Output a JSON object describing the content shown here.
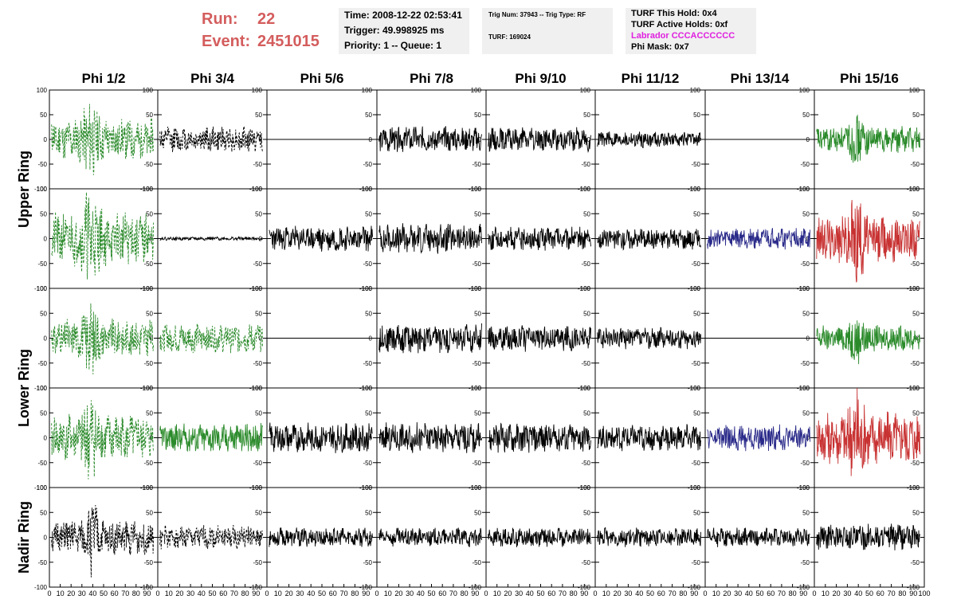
{
  "header": {
    "run_label": "Run:",
    "run_value": "22",
    "event_label": "Event:",
    "event_value": "2451015"
  },
  "info_box_1": {
    "time": "Time: 2008-12-22 02:53:41",
    "trigger": "Trigger: 49.998925 ms",
    "priority": "Priority: 1 -- Queue: 1"
  },
  "info_box_2": {
    "trig": "Trig Num: 37943 -- Trig Type: RF",
    "turf": "TURF: 169024"
  },
  "info_box_3": {
    "this_hold": "TURF This Hold: 0x4",
    "active_holds": "TURF Active Holds: 0xf",
    "labrador": "Labrador CCCACCCCCC",
    "phi_mask": "Phi Mask: 0x7"
  },
  "colors": {
    "header_red": "#d45d5d",
    "labrador_magenta": "#e020e0",
    "green": "#2a8a2a",
    "black": "#000000",
    "blue": "#2a2a8a",
    "red": "#c83232",
    "panel_bg": "#f0f0f0"
  },
  "column_labels": [
    "Phi 1/2",
    "Phi 3/4",
    "Phi 5/6",
    "Phi 7/8",
    "Phi 9/10",
    "Phi 11/12",
    "Phi 13/14",
    "Phi 15/16"
  ],
  "ring_labels": [
    "Upper Ring",
    "Lower Ring",
    "Nadir Ring"
  ],
  "chart_data": {
    "type": "line",
    "rows": 5,
    "cols": 8,
    "xlim": [
      0,
      100
    ],
    "ylim": [
      -100,
      100
    ],
    "x_tick_labels": [
      "0",
      "10",
      "20",
      "30",
      "40",
      "50",
      "60",
      "70",
      "80",
      "90",
      "100"
    ],
    "y_tick_labels": [
      "100",
      "50",
      "0",
      "-50",
      "-100"
    ],
    "panels": [
      {
        "row": 0,
        "col": 0,
        "color": "green",
        "style": "dashed",
        "amp": 35,
        "seed": 11
      },
      {
        "row": 0,
        "col": 1,
        "color": "black",
        "style": "dashed",
        "amp": 22,
        "seed": 12
      },
      {
        "row": 0,
        "col": 2,
        "color": "black",
        "style": "flat",
        "amp": 0,
        "seed": 13
      },
      {
        "row": 0,
        "col": 3,
        "color": "black",
        "style": "solid",
        "amp": 22,
        "seed": 14
      },
      {
        "row": 0,
        "col": 4,
        "color": "black",
        "style": "solid",
        "amp": 20,
        "seed": 15
      },
      {
        "row": 0,
        "col": 5,
        "color": "black",
        "style": "solid",
        "amp": 14,
        "seed": 16
      },
      {
        "row": 0,
        "col": 6,
        "color": "black",
        "style": "flat",
        "amp": 0,
        "seed": 17
      },
      {
        "row": 0,
        "col": 7,
        "color": "green",
        "style": "solid",
        "amp": 22,
        "seed": 18
      },
      {
        "row": 1,
        "col": 0,
        "color": "green",
        "style": "dashed",
        "amp": 45,
        "seed": 21
      },
      {
        "row": 1,
        "col": 1,
        "color": "black",
        "style": "solid",
        "amp": 3,
        "seed": 22
      },
      {
        "row": 1,
        "col": 2,
        "color": "black",
        "style": "solid",
        "amp": 22,
        "seed": 23
      },
      {
        "row": 1,
        "col": 3,
        "color": "black",
        "style": "solid",
        "amp": 25,
        "seed": 24
      },
      {
        "row": 1,
        "col": 4,
        "color": "black",
        "style": "solid",
        "amp": 20,
        "seed": 25
      },
      {
        "row": 1,
        "col": 5,
        "color": "black",
        "style": "solid",
        "amp": 18,
        "seed": 26
      },
      {
        "row": 1,
        "col": 6,
        "color": "blue",
        "style": "solid",
        "amp": 18,
        "seed": 27
      },
      {
        "row": 1,
        "col": 7,
        "color": "red",
        "style": "solid",
        "amp": 40,
        "seed": 28
      },
      {
        "row": 2,
        "col": 0,
        "color": "green",
        "style": "dashed",
        "amp": 32,
        "seed": 31
      },
      {
        "row": 2,
        "col": 1,
        "color": "green",
        "style": "dashed",
        "amp": 25,
        "seed": 32
      },
      {
        "row": 2,
        "col": 2,
        "color": "black",
        "style": "flat",
        "amp": 0,
        "seed": 33
      },
      {
        "row": 2,
        "col": 3,
        "color": "black",
        "style": "solid",
        "amp": 25,
        "seed": 34
      },
      {
        "row": 2,
        "col": 4,
        "color": "black",
        "style": "solid",
        "amp": 22,
        "seed": 35
      },
      {
        "row": 2,
        "col": 5,
        "color": "black",
        "style": "solid",
        "amp": 18,
        "seed": 36
      },
      {
        "row": 2,
        "col": 6,
        "color": "black",
        "style": "flat",
        "amp": 0,
        "seed": 37
      },
      {
        "row": 2,
        "col": 7,
        "color": "green",
        "style": "solid",
        "amp": 22,
        "seed": 38
      },
      {
        "row": 3,
        "col": 0,
        "color": "green",
        "style": "dashed",
        "amp": 40,
        "seed": 41
      },
      {
        "row": 3,
        "col": 1,
        "color": "green",
        "style": "solid",
        "amp": 25,
        "seed": 42
      },
      {
        "row": 3,
        "col": 2,
        "color": "black",
        "style": "solid",
        "amp": 25,
        "seed": 43
      },
      {
        "row": 3,
        "col": 3,
        "color": "black",
        "style": "solid",
        "amp": 25,
        "seed": 44
      },
      {
        "row": 3,
        "col": 4,
        "color": "black",
        "style": "solid",
        "amp": 25,
        "seed": 45
      },
      {
        "row": 3,
        "col": 5,
        "color": "black",
        "style": "solid",
        "amp": 22,
        "seed": 46
      },
      {
        "row": 3,
        "col": 6,
        "color": "blue",
        "style": "solid",
        "amp": 22,
        "seed": 47
      },
      {
        "row": 3,
        "col": 7,
        "color": "red",
        "style": "solid",
        "amp": 45,
        "seed": 48
      },
      {
        "row": 4,
        "col": 0,
        "color": "black",
        "style": "dashed",
        "amp": 30,
        "seed": 51
      },
      {
        "row": 4,
        "col": 1,
        "color": "black",
        "style": "dashed",
        "amp": 20,
        "seed": 52
      },
      {
        "row": 4,
        "col": 2,
        "color": "black",
        "style": "solid",
        "amp": 16,
        "seed": 53
      },
      {
        "row": 4,
        "col": 3,
        "color": "black",
        "style": "solid",
        "amp": 16,
        "seed": 54
      },
      {
        "row": 4,
        "col": 4,
        "color": "black",
        "style": "solid",
        "amp": 16,
        "seed": 55
      },
      {
        "row": 4,
        "col": 5,
        "color": "black",
        "style": "solid",
        "amp": 16,
        "seed": 56
      },
      {
        "row": 4,
        "col": 6,
        "color": "black",
        "style": "solid",
        "amp": 16,
        "seed": 57
      },
      {
        "row": 4,
        "col": 7,
        "color": "black",
        "style": "solid",
        "amp": 22,
        "seed": 58
      }
    ]
  }
}
